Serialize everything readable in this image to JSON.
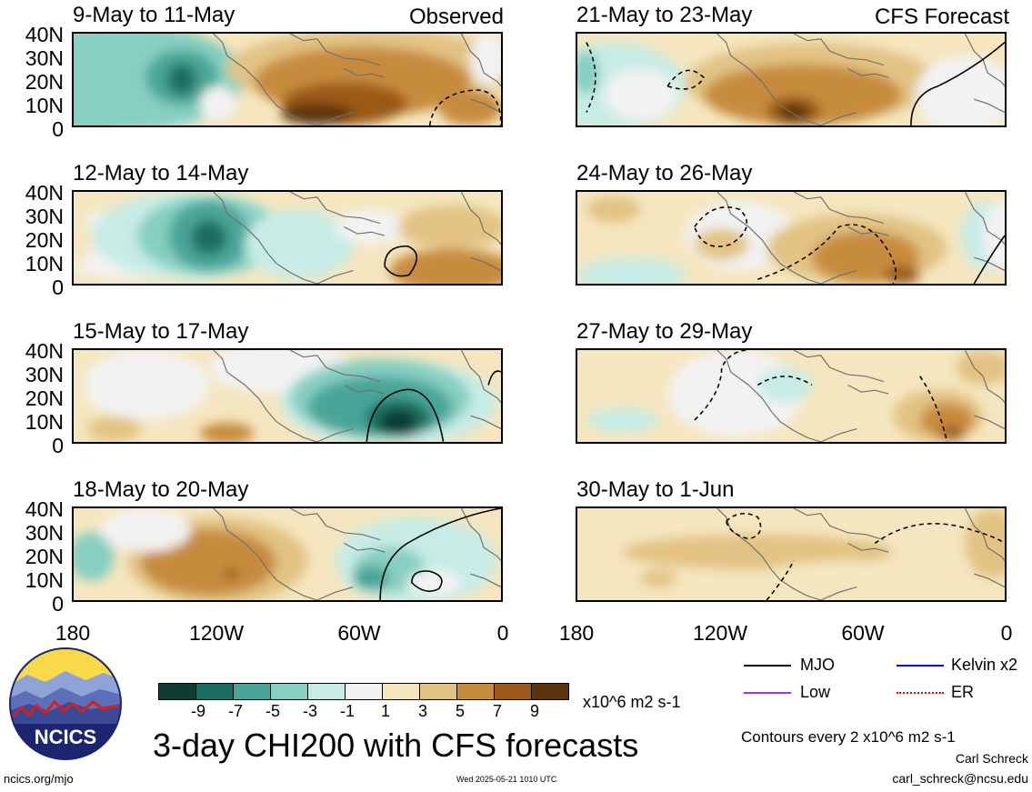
{
  "colors": {
    "neg9": "#0d3c32",
    "neg7": "#1a6e60",
    "neg5": "#4aa598",
    "neg3": "#86cfc1",
    "neg1": "#c7ece5",
    "zero": "#f2f2f2",
    "pos1": "#f5e6bf",
    "pos3": "#e2c383",
    "pos5": "#c78b3d",
    "pos7": "#9a5a19",
    "pos9": "#5b3410",
    "mjo": "#000000",
    "kelvin": "#0000ff",
    "low": "#9b30ff",
    "er": "#ff0000",
    "land_outline": "#707070"
  },
  "headers": {
    "left": "Observed",
    "right": "CFS Forecast"
  },
  "panels": {
    "obs": [
      "9-May to 11-May",
      "12-May to 14-May",
      "15-May to 17-May",
      "18-May to 20-May"
    ],
    "fcst": [
      "21-May to 23-May",
      "24-May to 26-May",
      "27-May to 29-May",
      "30-May to 1-Jun"
    ]
  },
  "y_labels": [
    "40N",
    "30N",
    "20N",
    "10N",
    "0"
  ],
  "x_labels": [
    "180",
    "120W",
    "60W",
    "0"
  ],
  "legend": {
    "mjo": "MJO",
    "kelvin": "Kelvin x2",
    "low": "Low",
    "er": "ER"
  },
  "colorbar": {
    "ticks": [
      "-9",
      "-7",
      "-5",
      "-3",
      "-1",
      "1",
      "3",
      "5",
      "7",
      "9"
    ],
    "units": "x10^6 m2 s-1"
  },
  "title": "3-day CHI200 with CFS forecasts",
  "contour_note": "Contours every 2 x10^6 m2 s-1",
  "author": "Carl Schreck",
  "email": "carl_schreck@ncsu.edu",
  "site": "ncics.org/mjo",
  "timestamp": "Wed 2025-05-21 1010 UTC",
  "logo_text": "NCICS"
}
